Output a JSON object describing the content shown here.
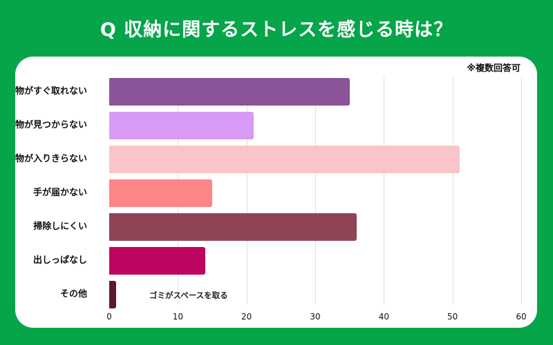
{
  "header": {
    "title": "Q 収納に関するストレスを感じる時は？"
  },
  "note": "※複数回答可",
  "annotation": "ゴミがスペースを取る",
  "chart_data": {
    "type": "bar",
    "orientation": "horizontal",
    "title": "Q 収納に関するストレスを感じる時は？",
    "subtitle": "※複数回答可",
    "categories": [
      "物がすぐ取れない",
      "物が見つからない",
      "物が入りきらない",
      "手が届かない",
      "掃除しにくい",
      "出しっぱなし",
      "その他"
    ],
    "values": [
      35,
      21,
      51,
      15,
      36,
      14,
      1
    ],
    "colors": [
      "#8b5499",
      "#d89af5",
      "#fbc4c8",
      "#fd8587",
      "#8f4456",
      "#bd0461",
      "#5a1a2c"
    ],
    "xlabel": "",
    "ylabel": "",
    "xlim": [
      0,
      60
    ],
    "xticks": [
      "0",
      "10",
      "20",
      "30",
      "40",
      "50",
      "60"
    ],
    "grid": true,
    "legend": "none",
    "annotations": [
      {
        "category": "その他",
        "text": "ゴミがスペースを取る"
      }
    ]
  }
}
